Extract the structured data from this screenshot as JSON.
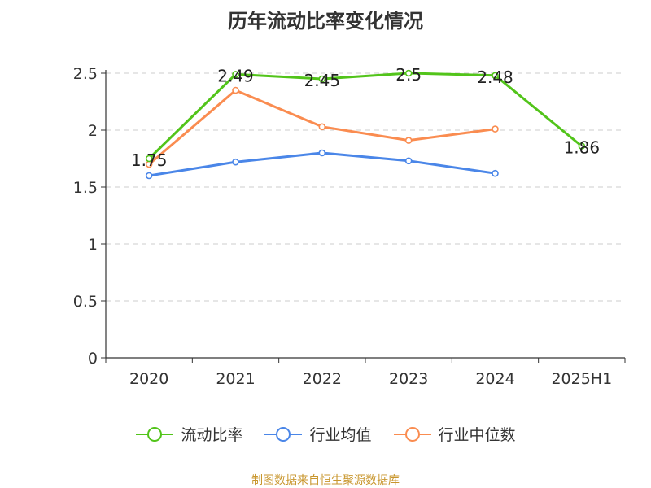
{
  "chart_data": {
    "type": "line",
    "title": "历年流动比率变化情况",
    "categories": [
      "2020",
      "2021",
      "2022",
      "2023",
      "2024",
      "2025H1"
    ],
    "ylim": [
      0,
      2.5
    ],
    "yticks": [
      0,
      0.5,
      1,
      1.5,
      2,
      2.5
    ],
    "ytick_labels": [
      "0",
      "0.5",
      "1",
      "1.5",
      "2",
      "2.5"
    ],
    "grid": true,
    "legend_position": "bottom",
    "series": [
      {
        "name": "流动比率",
        "color": "#52c41a",
        "values": [
          1.75,
          2.49,
          2.45,
          2.5,
          2.48,
          1.86
        ],
        "labels": [
          "1.75",
          "2.49",
          "2.45",
          "2.5",
          "2.48",
          "1.86"
        ]
      },
      {
        "name": "行业均值",
        "color": "#4a86e8",
        "values": [
          1.6,
          1.72,
          1.8,
          1.73,
          1.62,
          null
        ]
      },
      {
        "name": "行业中位数",
        "color": "#fa8c50",
        "values": [
          1.7,
          2.35,
          2.03,
          1.91,
          2.01,
          null
        ]
      }
    ]
  },
  "source_text": "制图数据来自恒生聚源数据库"
}
